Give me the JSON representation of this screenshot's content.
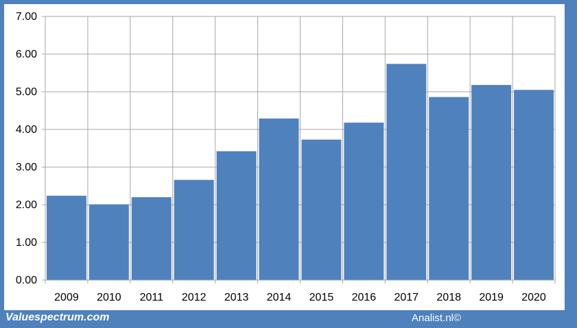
{
  "chart_data": {
    "type": "bar",
    "categories": [
      "2009",
      "2010",
      "2011",
      "2012",
      "2013",
      "2014",
      "2015",
      "2016",
      "2017",
      "2018",
      "2019",
      "2020"
    ],
    "values": [
      2.24,
      2.01,
      2.2,
      2.66,
      3.42,
      4.29,
      3.73,
      4.18,
      5.74,
      4.86,
      5.18,
      5.05
    ],
    "yticks": [
      "0.00",
      "1.00",
      "2.00",
      "3.00",
      "4.00",
      "5.00",
      "6.00",
      "7.00"
    ],
    "ylim": [
      0,
      7
    ],
    "grid": true,
    "bar_color": "#4f81bd",
    "grid_color": "#a6a6a6"
  },
  "footer": {
    "left": "Valuespectrum.com",
    "right": "Analist.nl©"
  },
  "colors": {
    "frame": "#4f81bd"
  }
}
